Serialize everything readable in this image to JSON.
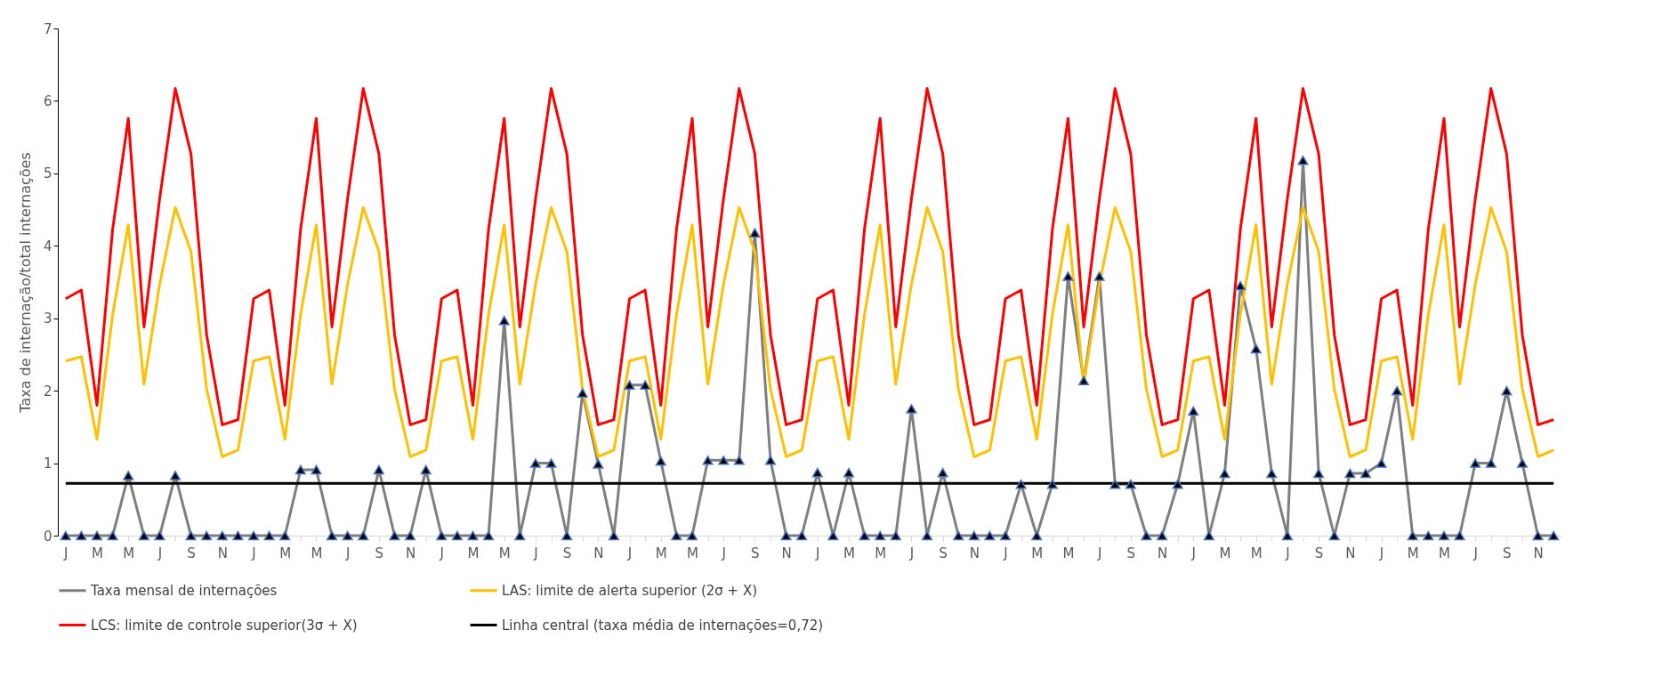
{
  "chart_data": {
    "type": "line",
    "ylabel": "Taxa de internação/total internações",
    "categories": [
      "J",
      null,
      "M",
      null,
      "M",
      null,
      "J",
      null,
      "S",
      null,
      "N",
      null,
      "J",
      null,
      "M",
      null,
      "M",
      null,
      "J",
      null,
      "S",
      null,
      "N",
      null,
      "J",
      null,
      "M",
      null,
      "M",
      null,
      "J",
      null,
      "S",
      null,
      "N",
      null,
      "J",
      null,
      "M",
      null,
      "M",
      null,
      "J",
      null,
      "S",
      null,
      "N",
      null,
      "J",
      null,
      "M",
      null,
      "M",
      null,
      "J",
      null,
      "S",
      null,
      "N",
      null,
      "J",
      null,
      "M",
      null,
      "M",
      null,
      "J",
      null,
      "S",
      null,
      "N",
      null,
      "J",
      null,
      "M",
      null,
      "M",
      null,
      "J",
      null,
      "S",
      null,
      "N",
      null,
      "J",
      null,
      "M",
      null,
      "M",
      null,
      "J",
      null,
      "S",
      null,
      "N",
      null
    ],
    "ylim": [
      0,
      7
    ],
    "yticks": [
      0,
      1,
      2,
      3,
      4,
      5,
      6,
      7
    ],
    "grid": false,
    "legend": "bottom",
    "series": [
      {
        "name": "Taxa mensal de internações",
        "color": "#7f7f7f",
        "marker": "triangle",
        "values": [
          0,
          0,
          0,
          0,
          0.83,
          0,
          0,
          0.83,
          0,
          0,
          0,
          0,
          0,
          0,
          0,
          0.91,
          0.91,
          0,
          0,
          0,
          0.91,
          0,
          0,
          0.91,
          0,
          0,
          0,
          0,
          2.97,
          0,
          1.0,
          1.0,
          0,
          1.97,
          0.99,
          0,
          2.08,
          2.08,
          1.03,
          0,
          0,
          1.04,
          1.04,
          1.04,
          4.18,
          1.04,
          0,
          0,
          0.87,
          0,
          0.87,
          0,
          0,
          0,
          1.75,
          0,
          0.87,
          0,
          0,
          0,
          0,
          0.71,
          0,
          0.71,
          3.58,
          2.14,
          3.58,
          0.71,
          0.71,
          0,
          0,
          0.71,
          1.72,
          0,
          0.86,
          3.45,
          2.58,
          0.86,
          0,
          5.18,
          0.86,
          0,
          0.86,
          0.86,
          1.0,
          2.0,
          0,
          0,
          0,
          0,
          1.0,
          1.0,
          2.0,
          1.0,
          0,
          0
        ]
      },
      {
        "name": "LAS: limite de alerta superior (2σ + X)",
        "color": "#ffc000",
        "values": [
          2.41,
          2.47,
          1.33,
          3.05,
          4.29,
          2.09,
          3.47,
          4.53,
          3.92,
          2.02,
          1.09,
          1.18,
          2.41,
          2.47,
          1.33,
          3.05,
          4.29,
          2.09,
          3.47,
          4.53,
          3.92,
          2.02,
          1.09,
          1.18,
          2.41,
          2.47,
          1.33,
          3.05,
          4.29,
          2.09,
          3.47,
          4.53,
          3.92,
          2.02,
          1.09,
          1.18,
          2.41,
          2.47,
          1.33,
          3.05,
          4.29,
          2.09,
          3.47,
          4.53,
          3.92,
          2.02,
          1.09,
          1.18,
          2.41,
          2.47,
          1.33,
          3.05,
          4.29,
          2.09,
          3.47,
          4.53,
          3.92,
          2.02,
          1.09,
          1.18,
          2.41,
          2.47,
          1.33,
          3.05,
          4.29,
          2.09,
          3.47,
          4.53,
          3.92,
          2.02,
          1.09,
          1.18,
          2.41,
          2.47,
          1.33,
          3.05,
          4.29,
          2.09,
          3.47,
          4.53,
          3.92,
          2.02,
          1.09,
          1.18,
          2.41,
          2.47,
          1.33,
          3.05,
          4.29,
          2.09,
          3.47,
          4.53,
          3.92,
          2.02,
          1.09,
          1.18
        ]
      },
      {
        "name": "LCS: limite de controle superior(3σ + X)",
        "color": "#ff0000",
        "values": [
          3.27,
          3.39,
          1.8,
          4.23,
          5.76,
          2.88,
          4.65,
          6.17,
          5.27,
          2.77,
          1.53,
          1.6,
          3.27,
          3.39,
          1.8,
          4.23,
          5.76,
          2.88,
          4.65,
          6.17,
          5.27,
          2.77,
          1.53,
          1.6,
          3.27,
          3.39,
          1.8,
          4.23,
          5.76,
          2.88,
          4.65,
          6.17,
          5.27,
          2.77,
          1.53,
          1.6,
          3.27,
          3.39,
          1.8,
          4.23,
          5.76,
          2.88,
          4.65,
          6.17,
          5.27,
          2.77,
          1.53,
          1.6,
          3.27,
          3.39,
          1.8,
          4.23,
          5.76,
          2.88,
          4.65,
          6.17,
          5.27,
          2.77,
          1.53,
          1.6,
          3.27,
          3.39,
          1.8,
          4.23,
          5.76,
          2.88,
          4.65,
          6.17,
          5.27,
          2.77,
          1.53,
          1.6,
          3.27,
          3.39,
          1.8,
          4.23,
          5.76,
          2.88,
          4.65,
          6.17,
          5.27,
          2.77,
          1.53,
          1.6,
          3.27,
          3.39,
          1.8,
          4.23,
          5.76,
          2.88,
          4.65,
          6.17,
          5.27,
          2.77,
          1.53,
          1.6
        ]
      },
      {
        "name": "Linha central (taxa média de internações=0,72)",
        "color": "#000000",
        "values": [
          0.72,
          0.72,
          0.72,
          0.72,
          0.72,
          0.72,
          0.72,
          0.72,
          0.72,
          0.72,
          0.72,
          0.72,
          0.72,
          0.72,
          0.72,
          0.72,
          0.72,
          0.72,
          0.72,
          0.72,
          0.72,
          0.72,
          0.72,
          0.72,
          0.72,
          0.72,
          0.72,
          0.72,
          0.72,
          0.72,
          0.72,
          0.72,
          0.72,
          0.72,
          0.72,
          0.72,
          0.72,
          0.72,
          0.72,
          0.72,
          0.72,
          0.72,
          0.72,
          0.72,
          0.72,
          0.72,
          0.72,
          0.72,
          0.72,
          0.72,
          0.72,
          0.72,
          0.72,
          0.72,
          0.72,
          0.72,
          0.72,
          0.72,
          0.72,
          0.72,
          0.72,
          0.72,
          0.72,
          0.72,
          0.72,
          0.72,
          0.72,
          0.72,
          0.72,
          0.72,
          0.72,
          0.72,
          0.72,
          0.72,
          0.72,
          0.72,
          0.72,
          0.72,
          0.72,
          0.72,
          0.72,
          0.72,
          0.72,
          0.72,
          0.72,
          0.72,
          0.72,
          0.72,
          0.72,
          0.72,
          0.72,
          0.72,
          0.72,
          0.72,
          0.72,
          0.72
        ]
      }
    ]
  }
}
